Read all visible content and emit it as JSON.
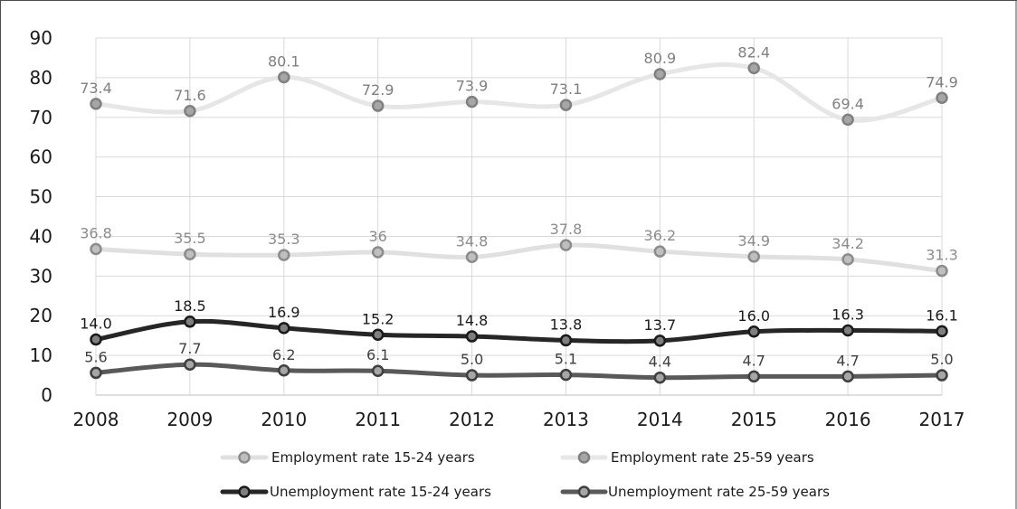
{
  "chart_data": {
    "type": "line",
    "categories": [
      "2008",
      "2009",
      "2010",
      "2011",
      "2012",
      "2013",
      "2014",
      "2015",
      "2016",
      "2017"
    ],
    "ylim": [
      0,
      90
    ],
    "yticks": [
      0,
      10,
      20,
      30,
      40,
      50,
      60,
      70,
      80,
      90
    ],
    "grid": true,
    "legend_position": "bottom",
    "series": [
      {
        "name": "Employment rate 15-24 years",
        "values": [
          36.8,
          35.5,
          35.3,
          36,
          34.8,
          37.8,
          36.2,
          34.9,
          34.2,
          31.3
        ],
        "labels": [
          "36.8",
          "35.5",
          "35.3",
          "36",
          "34.8",
          "37.8",
          "36.2",
          "34.9",
          "34.2",
          "31.3"
        ],
        "line_color": "#e0e0e0",
        "marker_fill": "#bfbfbf",
        "marker_stroke": "#8c8c8c",
        "label_color": "#8c8c8c",
        "line_width": 5,
        "smooth": true
      },
      {
        "name": "Employment rate 25-59 years",
        "values": [
          73.4,
          71.6,
          80.1,
          72.9,
          73.9,
          73.1,
          80.9,
          82.4,
          69.4,
          74.9
        ],
        "labels": [
          "73.4",
          "71.6",
          "80.1",
          "72.9",
          "73.9",
          "73.1",
          "80.9",
          "82.4",
          "69.4",
          "74.9"
        ],
        "line_color": "#e6e6e6",
        "marker_fill": "#a6a6a6",
        "marker_stroke": "#808080",
        "label_color": "#7f7f7f",
        "line_width": 5,
        "smooth": true
      },
      {
        "name": "Unemployment rate 15-24 years",
        "values": [
          14.0,
          18.5,
          16.9,
          15.2,
          14.8,
          13.8,
          13.7,
          16.0,
          16.3,
          16.1
        ],
        "labels": [
          "14.0",
          "18.5",
          "16.9",
          "15.2",
          "14.8",
          "13.8",
          "13.7",
          "16.0",
          "16.3",
          "16.1"
        ],
        "line_color": "#262626",
        "marker_fill": "#7f7f7f",
        "marker_stroke": "#1a1a1a",
        "label_color": "#1a1a1a",
        "line_width": 5,
        "smooth": true
      },
      {
        "name": "Unemployment rate 25-59 years",
        "values": [
          5.6,
          7.7,
          6.2,
          6.1,
          5.0,
          5.1,
          4.4,
          4.7,
          4.7,
          5.0
        ],
        "labels": [
          "5.6",
          "7.7",
          "6.2",
          "6.1",
          "5.0",
          "5.1",
          "4.4",
          "4.7",
          "4.7",
          "5.0"
        ],
        "line_color": "#595959",
        "marker_fill": "#a6a6a6",
        "marker_stroke": "#3f3f3f",
        "label_color": "#3f3f3f",
        "line_width": 5,
        "smooth": true
      }
    ]
  }
}
